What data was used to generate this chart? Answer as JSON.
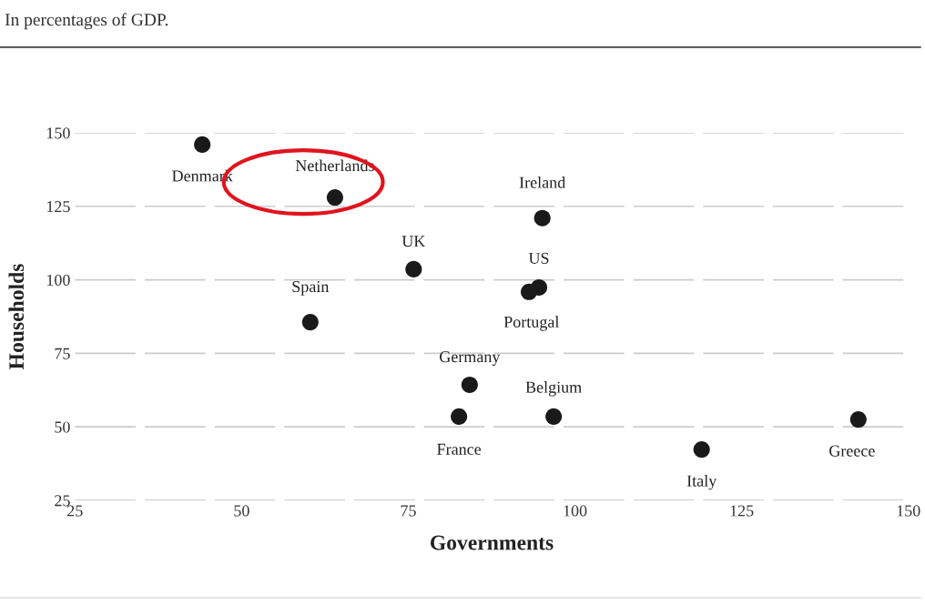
{
  "chart_data": {
    "type": "scatter",
    "subtitle": "In percentages of GDP.",
    "xlabel": "Governments",
    "ylabel": "Households",
    "xlim": [
      25,
      150
    ],
    "xticks": [
      25,
      50,
      75,
      100,
      125,
      150
    ],
    "ylim": [
      25,
      150
    ],
    "yticks": [
      25,
      50,
      75,
      100,
      125,
      150
    ],
    "grid": "y",
    "marker": "circle",
    "legend": false,
    "series": [
      {
        "name": "Denmark",
        "color": "#1a1a1a",
        "x": [
          44.1
        ],
        "values": [
          146
        ]
      },
      {
        "name": "Netherlands",
        "color": "#1a1a1a",
        "x": [
          64
        ],
        "values": [
          128
        ]
      },
      {
        "name": "Ireland",
        "color": "#1a1a1a",
        "x": [
          95.1
        ],
        "values": [
          121
        ]
      },
      {
        "name": "UK",
        "color": "#1a1a1a",
        "x": [
          75.8
        ],
        "values": [
          103.6
        ]
      },
      {
        "name": "US",
        "color": "#1a1a1a",
        "x": [
          94.6
        ],
        "values": [
          97.4
        ]
      },
      {
        "name": "Portugal",
        "color": "#1a1a1a",
        "x": [
          93.1
        ],
        "values": [
          95.9
        ]
      },
      {
        "name": "Spain",
        "color": "#1a1a1a",
        "x": [
          60.3
        ],
        "values": [
          85.6
        ]
      },
      {
        "name": "Germany",
        "color": "#1a1a1a",
        "x": [
          84.2
        ],
        "values": [
          64.3
        ]
      },
      {
        "name": "France",
        "color": "#1a1a1a",
        "x": [
          82.6
        ],
        "values": [
          53.5
        ]
      },
      {
        "name": "Belgium",
        "color": "#1a1a1a",
        "x": [
          96.8
        ],
        "values": [
          53.5
        ]
      },
      {
        "name": "Italy",
        "color": "#1a1a1a",
        "x": [
          119.0
        ],
        "values": [
          42.3
        ]
      },
      {
        "name": "Greece",
        "color": "#1a1a1a",
        "x": [
          142.5
        ],
        "values": [
          52.5
        ]
      }
    ]
  }
}
